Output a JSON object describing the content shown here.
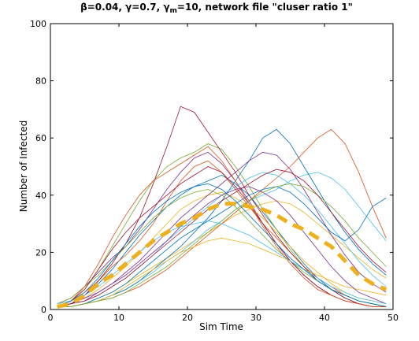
{
  "chart_data": {
    "type": "line",
    "title": "β=0.04, γ=0.7, γm=10, network file \"cluser ratio 1\"",
    "title_parts": {
      "lead": "β=0.04, γ=0.7, γ",
      "sub": "m",
      "tail": "=10, network file \"cluser ratio 1\""
    },
    "xlabel": "Sim Time",
    "ylabel": "Number of Infected",
    "xlim": [
      0,
      50
    ],
    "ylim": [
      0,
      100
    ],
    "xticks": [
      0,
      10,
      20,
      30,
      40,
      50
    ],
    "yticks": [
      0,
      20,
      40,
      60,
      80,
      100
    ],
    "grid": false,
    "mean_series": {
      "color": "#EDB120",
      "style": "dashed",
      "x": [
        1,
        3,
        5,
        7,
        9,
        11,
        13,
        15,
        17,
        19,
        21,
        23,
        25,
        27,
        29,
        31,
        33,
        35,
        37,
        39,
        41,
        43,
        45,
        47,
        49
      ],
      "y": [
        1,
        2,
        5,
        9,
        12,
        16,
        20,
        24,
        27,
        30,
        32,
        35,
        37,
        37,
        36,
        35,
        33,
        30,
        28,
        25,
        22,
        17,
        12,
        9,
        7
      ]
    },
    "series": [
      {
        "color": "#0072BD",
        "x": [
          1,
          3,
          5,
          7,
          9,
          11,
          13,
          15,
          17,
          19,
          21,
          23,
          25,
          27,
          29,
          31,
          33,
          35,
          37,
          39,
          41,
          43,
          45,
          47,
          49
        ],
        "y": [
          1,
          2,
          5,
          9,
          14,
          20,
          26,
          31,
          36,
          40,
          43,
          45,
          47,
          44,
          40,
          34,
          28,
          22,
          16,
          11,
          7,
          4,
          2,
          1,
          1
        ]
      },
      {
        "color": "#D95319",
        "x": [
          1,
          3,
          5,
          7,
          9,
          11,
          13,
          15,
          17,
          19,
          21,
          23,
          25,
          27,
          29,
          31,
          33,
          35,
          37,
          39,
          41,
          43,
          45,
          47,
          49
        ],
        "y": [
          2,
          3,
          6,
          10,
          15,
          19,
          24,
          30,
          38,
          45,
          50,
          52,
          48,
          42,
          36,
          30,
          25,
          20,
          15,
          11,
          8,
          5,
          3,
          2,
          1
        ]
      },
      {
        "color": "#EDB120",
        "x": [
          1,
          3,
          5,
          7,
          9,
          11,
          13,
          15,
          17,
          19,
          21,
          23,
          25,
          27,
          29,
          31,
          33,
          35,
          37,
          39,
          41,
          43,
          45,
          47,
          49
        ],
        "y": [
          1,
          1,
          2,
          4,
          6,
          9,
          12,
          15,
          18,
          21,
          24,
          27,
          30,
          33,
          35,
          37,
          38,
          37,
          34,
          30,
          26,
          22,
          18,
          14,
          11
        ]
      },
      {
        "color": "#7E2F8E",
        "x": [
          1,
          3,
          5,
          7,
          9,
          11,
          13,
          15,
          17,
          19,
          21,
          23,
          25,
          27,
          29,
          31,
          33,
          35,
          37,
          39,
          41,
          43,
          45,
          47,
          49
        ],
        "y": [
          2,
          4,
          8,
          13,
          18,
          22,
          28,
          35,
          42,
          48,
          53,
          55,
          51,
          45,
          38,
          30,
          23,
          17,
          12,
          8,
          5,
          3,
          2,
          1,
          1
        ]
      },
      {
        "color": "#77AC30",
        "x": [
          1,
          3,
          5,
          7,
          9,
          11,
          13,
          15,
          17,
          19,
          21,
          23,
          25,
          27,
          29,
          31,
          33,
          35,
          37,
          39,
          41,
          43,
          45,
          47,
          49
        ],
        "y": [
          1,
          3,
          7,
          14,
          22,
          30,
          38,
          45,
          50,
          53,
          55,
          58,
          56,
          50,
          43,
          35,
          28,
          21,
          15,
          10,
          7,
          5,
          3,
          2,
          1
        ]
      },
      {
        "color": "#4DBEEE",
        "x": [
          1,
          3,
          5,
          7,
          9,
          11,
          13,
          15,
          17,
          19,
          21,
          23,
          25,
          27,
          29,
          31,
          33,
          35,
          37,
          39,
          41,
          43,
          45,
          47,
          49
        ],
        "y": [
          1,
          1,
          2,
          3,
          5,
          7,
          10,
          13,
          17,
          20,
          24,
          28,
          31,
          35,
          38,
          40,
          42,
          45,
          47,
          48,
          46,
          42,
          36,
          30,
          24
        ]
      },
      {
        "color": "#A2142F",
        "x": [
          1,
          3,
          5,
          7,
          9,
          11,
          13,
          15,
          17,
          19,
          21,
          23,
          25,
          27,
          29,
          31,
          33,
          35,
          37,
          39,
          41,
          43,
          45,
          47,
          49
        ],
        "y": [
          1,
          2,
          5,
          10,
          16,
          23,
          32,
          44,
          57,
          71,
          69,
          62,
          55,
          48,
          40,
          33,
          26,
          20,
          15,
          10,
          7,
          4,
          2,
          1,
          1
        ]
      },
      {
        "color": "#0072BD",
        "x": [
          1,
          3,
          5,
          7,
          9,
          11,
          13,
          15,
          17,
          19,
          21,
          23,
          25,
          27,
          29,
          31,
          33,
          35,
          37,
          39,
          41,
          43,
          45,
          47,
          49
        ],
        "y": [
          1,
          1,
          2,
          3,
          5,
          7,
          10,
          14,
          18,
          22,
          27,
          32,
          38,
          45,
          52,
          60,
          63,
          58,
          50,
          42,
          34,
          27,
          21,
          16,
          12
        ]
      },
      {
        "color": "#D95319",
        "x": [
          1,
          3,
          5,
          7,
          9,
          11,
          13,
          15,
          17,
          19,
          21,
          23,
          25,
          27,
          29,
          31,
          33,
          35,
          37,
          39,
          41,
          43,
          45,
          47,
          49
        ],
        "y": [
          1,
          1,
          2,
          3,
          4,
          6,
          8,
          11,
          14,
          18,
          22,
          26,
          30,
          34,
          38,
          42,
          46,
          50,
          55,
          60,
          63,
          58,
          48,
          36,
          25
        ]
      },
      {
        "color": "#EDB120",
        "x": [
          1,
          3,
          5,
          7,
          9,
          11,
          13,
          15,
          17,
          19,
          21,
          23,
          25,
          27,
          29,
          31,
          33,
          35,
          37,
          39,
          41,
          43,
          45,
          47,
          49
        ],
        "y": [
          1,
          2,
          4,
          7,
          11,
          15,
          20,
          25,
          30,
          35,
          38,
          40,
          41,
          39,
          36,
          32,
          27,
          22,
          17,
          13,
          9,
          6,
          4,
          3,
          2
        ]
      },
      {
        "color": "#7E2F8E",
        "x": [
          1,
          3,
          5,
          7,
          9,
          11,
          13,
          15,
          17,
          19,
          21,
          23,
          25,
          27,
          29,
          31,
          33,
          35,
          37,
          39,
          41,
          43,
          45,
          47,
          49
        ],
        "y": [
          1,
          2,
          3,
          6,
          9,
          13,
          17,
          22,
          27,
          32,
          36,
          40,
          44,
          48,
          52,
          55,
          54,
          49,
          42,
          34,
          26,
          19,
          13,
          9,
          6
        ]
      },
      {
        "color": "#77AC30",
        "x": [
          1,
          3,
          5,
          7,
          9,
          11,
          13,
          15,
          17,
          19,
          21,
          23,
          25,
          27,
          29,
          31,
          33,
          35,
          37,
          39,
          41,
          43,
          45,
          47,
          49
        ],
        "y": [
          2,
          4,
          8,
          12,
          17,
          22,
          27,
          32,
          36,
          39,
          41,
          42,
          40,
          36,
          31,
          26,
          21,
          17,
          13,
          10,
          7,
          5,
          3,
          2,
          1
        ]
      },
      {
        "color": "#4DBEEE",
        "x": [
          1,
          3,
          5,
          7,
          9,
          11,
          13,
          15,
          17,
          19,
          21,
          23,
          25,
          27,
          29,
          31,
          33,
          35,
          37,
          39,
          41,
          43,
          45,
          47,
          49
        ],
        "y": [
          1,
          2,
          3,
          5,
          8,
          11,
          15,
          19,
          24,
          28,
          32,
          36,
          40,
          43,
          46,
          48,
          47,
          44,
          40,
          35,
          29,
          23,
          17,
          12,
          8
        ]
      },
      {
        "color": "#A2142F",
        "x": [
          1,
          3,
          5,
          7,
          9,
          11,
          13,
          15,
          17,
          19,
          21,
          23,
          25,
          27,
          29,
          31,
          33,
          35,
          37,
          39,
          41,
          43,
          45,
          47,
          49
        ],
        "y": [
          1,
          3,
          7,
          14,
          21,
          27,
          32,
          36,
          40,
          44,
          47,
          50,
          48,
          43,
          37,
          30,
          23,
          17,
          12,
          8,
          5,
          3,
          2,
          1,
          1
        ]
      },
      {
        "color": "#0072BD",
        "x": [
          1,
          3,
          5,
          7,
          9,
          11,
          13,
          15,
          17,
          19,
          21,
          23,
          25,
          27,
          29,
          31,
          33,
          35,
          37,
          39,
          41,
          43,
          45,
          47,
          49
        ],
        "y": [
          1,
          1,
          2,
          4,
          6,
          9,
          13,
          17,
          21,
          25,
          28,
          31,
          34,
          37,
          40,
          42,
          43,
          41,
          37,
          32,
          27,
          24,
          28,
          36,
          39
        ]
      },
      {
        "color": "#D95319",
        "x": [
          1,
          3,
          5,
          7,
          9,
          11,
          13,
          15,
          17,
          19,
          21,
          23,
          25,
          27,
          29,
          31,
          33,
          35,
          37,
          39,
          41,
          43,
          45,
          47,
          49
        ],
        "y": [
          1,
          3,
          8,
          16,
          25,
          33,
          40,
          45,
          48,
          51,
          54,
          57,
          52,
          45,
          37,
          29,
          22,
          16,
          11,
          7,
          5,
          3,
          2,
          1,
          1
        ]
      },
      {
        "color": "#EDB120",
        "x": [
          1,
          3,
          5,
          7,
          9,
          11,
          13,
          15,
          17,
          19,
          21,
          23,
          25,
          27,
          29,
          31,
          33,
          35,
          37,
          39,
          41,
          43,
          45,
          47,
          49
        ],
        "y": [
          1,
          1,
          2,
          3,
          5,
          8,
          11,
          14,
          17,
          20,
          22,
          24,
          25,
          24,
          23,
          21,
          19,
          17,
          14,
          12,
          10,
          8,
          7,
          6,
          5
        ]
      },
      {
        "color": "#7E2F8E",
        "x": [
          1,
          3,
          5,
          7,
          9,
          11,
          13,
          15,
          17,
          19,
          21,
          23,
          25,
          27,
          29,
          31,
          33,
          35,
          37,
          39,
          41,
          43,
          45,
          47,
          49
        ],
        "y": [
          1,
          2,
          4,
          6,
          9,
          12,
          16,
          20,
          24,
          29,
          33,
          37,
          40,
          42,
          43,
          41,
          38,
          33,
          27,
          21,
          15,
          10,
          6,
          4,
          2
        ]
      },
      {
        "color": "#77AC30",
        "x": [
          1,
          3,
          5,
          7,
          9,
          11,
          13,
          15,
          17,
          19,
          21,
          23,
          25,
          27,
          29,
          31,
          33,
          35,
          37,
          39,
          41,
          43,
          45,
          47,
          49
        ],
        "y": [
          1,
          1,
          2,
          3,
          4,
          6,
          9,
          12,
          15,
          19,
          23,
          27,
          31,
          35,
          38,
          41,
          43,
          44,
          43,
          40,
          36,
          31,
          25,
          20,
          15
        ]
      },
      {
        "color": "#4DBEEE",
        "x": [
          1,
          3,
          5,
          7,
          9,
          11,
          13,
          15,
          17,
          19,
          21,
          23,
          25,
          27,
          29,
          31,
          33,
          35,
          37,
          39,
          41,
          43,
          45,
          47,
          49
        ],
        "y": [
          2,
          3,
          5,
          8,
          12,
          16,
          20,
          24,
          27,
          29,
          30,
          31,
          30,
          28,
          26,
          23,
          20,
          17,
          14,
          11,
          8,
          6,
          4,
          3,
          2
        ]
      },
      {
        "color": "#A2142F",
        "x": [
          1,
          3,
          5,
          7,
          9,
          11,
          13,
          15,
          17,
          19,
          21,
          23,
          25,
          27,
          29,
          31,
          33,
          35,
          37,
          39,
          41,
          43,
          45,
          47,
          49
        ],
        "y": [
          1,
          2,
          3,
          5,
          8,
          11,
          15,
          19,
          23,
          27,
          31,
          35,
          38,
          41,
          44,
          47,
          49,
          48,
          45,
          40,
          34,
          28,
          22,
          17,
          13
        ]
      },
      {
        "color": "#0072BD",
        "x": [
          1,
          3,
          5,
          7,
          9,
          11,
          13,
          15,
          17,
          19,
          21,
          23,
          25,
          27,
          29,
          31,
          33,
          35,
          37,
          39,
          41,
          43,
          45,
          47,
          49
        ],
        "y": [
          1,
          3,
          6,
          11,
          17,
          23,
          29,
          34,
          38,
          41,
          43,
          44,
          42,
          38,
          33,
          28,
          23,
          18,
          14,
          10,
          7,
          5,
          3,
          2,
          1
        ]
      }
    ]
  }
}
